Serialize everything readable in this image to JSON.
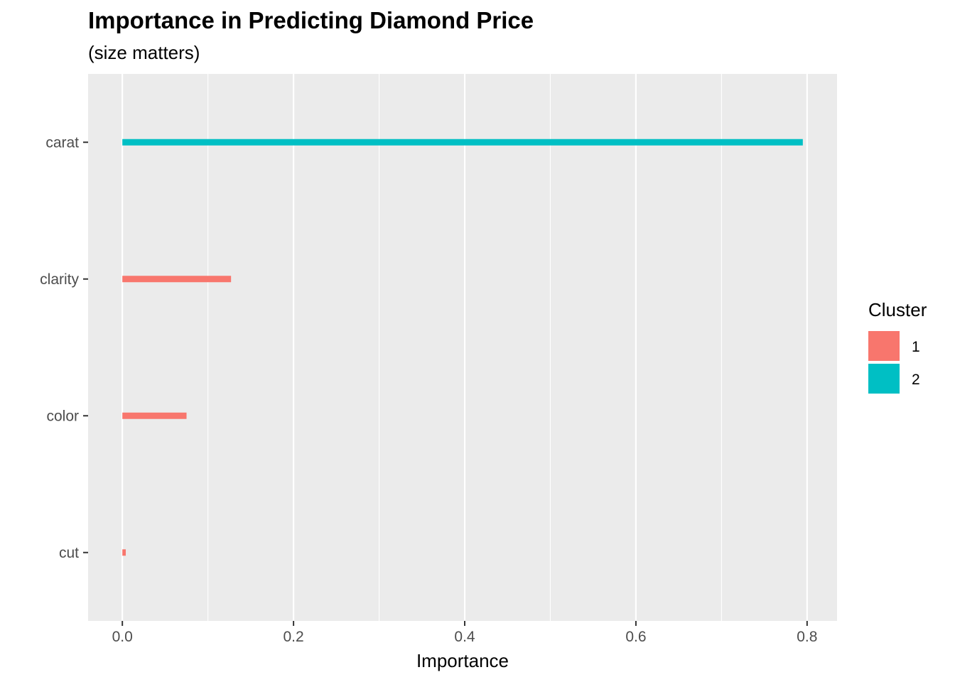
{
  "chart_data": {
    "type": "bar",
    "orientation": "horizontal",
    "title": "Importance in Predicting Diamond Price",
    "subtitle": "(size matters)",
    "xlabel": "Importance",
    "ylabel": "",
    "xlim": [
      -0.04,
      0.835
    ],
    "x_ticks": [
      0.0,
      0.2,
      0.4,
      0.6,
      0.8
    ],
    "x_tick_labels": [
      "0.0",
      "0.2",
      "0.4",
      "0.6",
      "0.8"
    ],
    "x_minor_ticks": [
      0.1,
      0.3,
      0.5,
      0.7
    ],
    "categories": [
      "carat",
      "clarity",
      "color",
      "cut"
    ],
    "bars": [
      {
        "category": "carat",
        "value": 0.795,
        "cluster": "2"
      },
      {
        "category": "clarity",
        "value": 0.127,
        "cluster": "1"
      },
      {
        "category": "color",
        "value": 0.075,
        "cluster": "1"
      },
      {
        "category": "cut",
        "value": 0.004,
        "cluster": "1"
      }
    ],
    "legend": {
      "title": "Cluster",
      "position": "right",
      "items": [
        {
          "label": "1",
          "color": "#F8766D"
        },
        {
          "label": "2",
          "color": "#00BFC4"
        }
      ]
    },
    "grid": true,
    "panel_background": "#EBEBEB",
    "grid_color": "#FFFFFF"
  }
}
